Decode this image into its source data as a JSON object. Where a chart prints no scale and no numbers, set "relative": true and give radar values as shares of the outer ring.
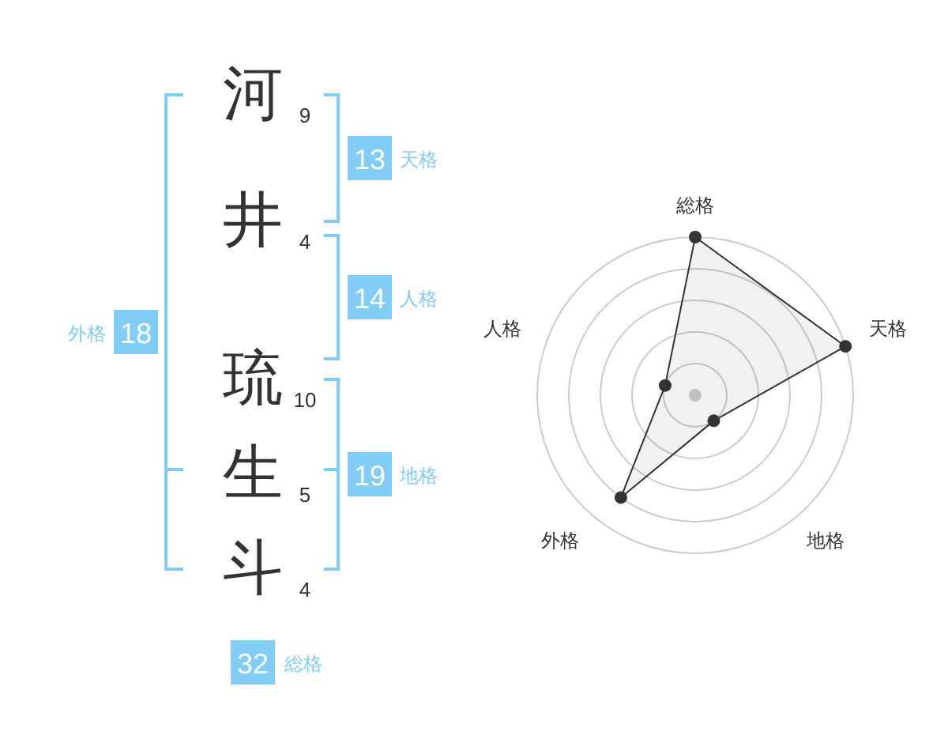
{
  "chart_data": [
    {
      "type": "other",
      "categories": [
        "河",
        "井",
        "琉",
        "生",
        "斗"
      ],
      "data_labels": true,
      "series": [
        {
          "values": [
            9,
            4,
            null,
            null,
            null
          ]
        },
        {
          "values": [
            null,
            null,
            10,
            5,
            4
          ]
        }
      ]
    },
    {
      "type": "other",
      "categories": [
        "天格",
        "人格",
        "地格",
        "外格",
        "総格"
      ],
      "values": [
        13,
        14,
        19,
        18,
        32
      ],
      "data_labels": true,
      "color": "#81cdf6"
    },
    {
      "type": "radar",
      "categories": [
        "総格",
        "天格",
        "地格",
        "外格",
        "人格"
      ],
      "relative": true,
      "grid": true,
      "marker": "circle",
      "series": [
        {
          "color": "#333333",
          "values": [
            1,
            1,
            0.2,
            0.8,
            0.2
          ]
        }
      ]
    }
  ]
}
